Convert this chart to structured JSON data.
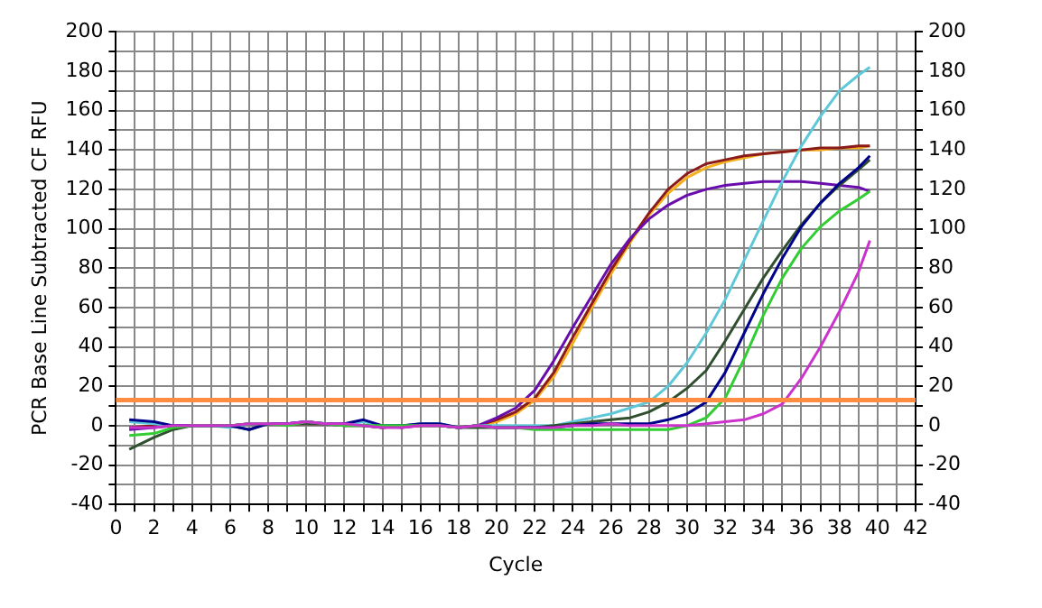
{
  "chart_data": {
    "type": "line",
    "xlabel": "Cycle",
    "ylabel": "PCR Base Line Subtracted CF RFU",
    "x": [
      0.7,
      2,
      3,
      4,
      5,
      6,
      7,
      8,
      9,
      10,
      11,
      12,
      13,
      14,
      15,
      16,
      17,
      18,
      19,
      20,
      21,
      22,
      23,
      24,
      25,
      26,
      27,
      28,
      29,
      30,
      31,
      32,
      33,
      34,
      35,
      36,
      37,
      38,
      39,
      39.6
    ],
    "xlim": [
      0,
      42
    ],
    "xticks": [
      0,
      {
        "value": 1,
        "label": null
      },
      2,
      {
        "value": 3,
        "label": null
      },
      4,
      {
        "value": 5,
        "label": null
      },
      6,
      {
        "value": 7,
        "label": null
      },
      8,
      {
        "value": 9,
        "label": null
      },
      10,
      {
        "value": 11,
        "label": null
      },
      12,
      {
        "value": 13,
        "label": null
      },
      14,
      {
        "value": 15,
        "label": null
      },
      16,
      {
        "value": 17,
        "label": null
      },
      18,
      {
        "value": 19,
        "label": null
      },
      20,
      {
        "value": 21,
        "label": null
      },
      22,
      {
        "value": 23,
        "label": null
      },
      24,
      {
        "value": 25,
        "label": null
      },
      26,
      {
        "value": 27,
        "label": null
      },
      28,
      {
        "value": 29,
        "label": null
      },
      30,
      {
        "value": 31,
        "label": null
      },
      32,
      {
        "value": 33,
        "label": null
      },
      34,
      {
        "value": 35,
        "label": null
      },
      36,
      {
        "value": 37,
        "label": null
      },
      38,
      {
        "value": 39,
        "label": null
      },
      40,
      {
        "value": 41,
        "label": null
      },
      42
    ],
    "ylim": [
      -40,
      200
    ],
    "yticks": [
      -40,
      {
        "value": -30,
        "label": null
      },
      -20,
      {
        "value": -10,
        "label": null
      },
      0,
      {
        "value": 10,
        "label": null
      },
      20,
      {
        "value": 30,
        "label": null
      },
      40,
      {
        "value": 50,
        "label": null
      },
      60,
      {
        "value": 70,
        "label": null
      },
      80,
      {
        "value": 90,
        "label": null
      },
      100,
      {
        "value": 110,
        "label": null
      },
      120,
      {
        "value": 130,
        "label": null
      },
      140,
      {
        "value": 150,
        "label": null
      },
      160,
      {
        "value": 170,
        "label": null
      },
      180,
      {
        "value": 190,
        "label": null
      },
      200
    ],
    "y2lim": [
      -40,
      200
    ],
    "y2ticks": [
      -40,
      {
        "value": -30,
        "label": null
      },
      -20,
      {
        "value": -10,
        "label": null
      },
      0,
      {
        "value": 10,
        "label": null
      },
      20,
      {
        "value": 30,
        "label": null
      },
      40,
      {
        "value": 50,
        "label": null
      },
      60,
      {
        "value": 70,
        "label": null
      },
      80,
      {
        "value": 90,
        "label": null
      },
      100,
      {
        "value": 110,
        "label": null
      },
      120,
      {
        "value": 130,
        "label": null
      },
      140,
      {
        "value": 150,
        "label": null
      },
      160,
      {
        "value": 170,
        "label": null
      },
      180,
      {
        "value": 190,
        "label": null
      },
      200
    ],
    "grid": true,
    "legend": false,
    "marker": "none",
    "line_style": "solid",
    "ref_lines": [
      {
        "axis": "y",
        "value": 13,
        "color": "#ff8c40"
      }
    ],
    "series": [
      {
        "color": "#f5b020",
        "values": [
          null,
          null,
          null,
          null,
          null,
          null,
          null,
          null,
          null,
          null,
          null,
          null,
          null,
          null,
          null,
          null,
          null,
          -1,
          0,
          2,
          6,
          13,
          25,
          42,
          60,
          77,
          93,
          107,
          118,
          126,
          131,
          134,
          136,
          138,
          139,
          140,
          140,
          141,
          141,
          142
        ]
      },
      {
        "color": "#8b1a1a",
        "values": [
          -1,
          0,
          0,
          0,
          0,
          0,
          1,
          1,
          1,
          1,
          1,
          0,
          0,
          -1,
          0,
          0,
          0,
          -1,
          0,
          3,
          7,
          14,
          27,
          45,
          62,
          79,
          94,
          108,
          120,
          128,
          133,
          135,
          137,
          138,
          139,
          140,
          141,
          141,
          142,
          142
        ]
      },
      {
        "color": "#6a0dad",
        "values": [
          -2,
          -1,
          0,
          0,
          0,
          0,
          1,
          1,
          1,
          2,
          1,
          1,
          0,
          0,
          -1,
          0,
          0,
          -1,
          0,
          4,
          9,
          18,
          33,
          50,
          66,
          82,
          95,
          105,
          112,
          117,
          120,
          122,
          123,
          124,
          124,
          124,
          123,
          122,
          121,
          119
        ]
      },
      {
        "color": "#5fc8d8",
        "values": [
          2,
          1,
          0,
          0,
          0,
          -1,
          1,
          1,
          1,
          2,
          1,
          0,
          2,
          0,
          0,
          1,
          1,
          -1,
          0,
          0,
          0,
          0,
          0,
          2,
          4,
          6,
          9,
          12,
          20,
          32,
          47,
          64,
          84,
          104,
          124,
          142,
          157,
          170,
          178,
          182
        ]
      },
      {
        "color": "#2f4f2f",
        "values": [
          -12,
          -6,
          -2,
          0,
          0,
          0,
          -2,
          1,
          1,
          1,
          1,
          0,
          0,
          -1,
          0,
          0,
          0,
          -1,
          -1,
          -1,
          -1,
          -1,
          0,
          1,
          2,
          3,
          4,
          7,
          12,
          19,
          28,
          43,
          59,
          75,
          89,
          102,
          113,
          122,
          130,
          135
        ]
      },
      {
        "color": "#00008b",
        "values": [
          3,
          2,
          0,
          0,
          0,
          0,
          -2,
          1,
          1,
          2,
          1,
          1,
          3,
          0,
          0,
          1,
          1,
          -1,
          0,
          -1,
          -1,
          -1,
          -1,
          0,
          1,
          1,
          1,
          1,
          3,
          6,
          12,
          27,
          47,
          67,
          85,
          101,
          113,
          123,
          131,
          137
        ]
      },
      {
        "color": "#32cd32",
        "values": [
          -5,
          -4,
          -1,
          0,
          0,
          0,
          1,
          1,
          0,
          2,
          1,
          0,
          0,
          0,
          0,
          0,
          0,
          -1,
          0,
          -1,
          -1,
          -2,
          -2,
          -2,
          -2,
          -2,
          -2,
          -2,
          -2,
          0,
          4,
          14,
          34,
          56,
          75,
          90,
          101,
          109,
          115,
          119
        ]
      },
      {
        "color": "#cc33cc",
        "values": [
          -1,
          -1,
          0,
          0,
          0,
          0,
          1,
          1,
          1,
          2,
          1,
          1,
          0,
          -1,
          -1,
          0,
          0,
          -1,
          0,
          -1,
          -1,
          -1,
          -1,
          0,
          0,
          1,
          0,
          0,
          0,
          0,
          1,
          2,
          3,
          6,
          11,
          24,
          40,
          58,
          78,
          94
        ]
      }
    ]
  }
}
